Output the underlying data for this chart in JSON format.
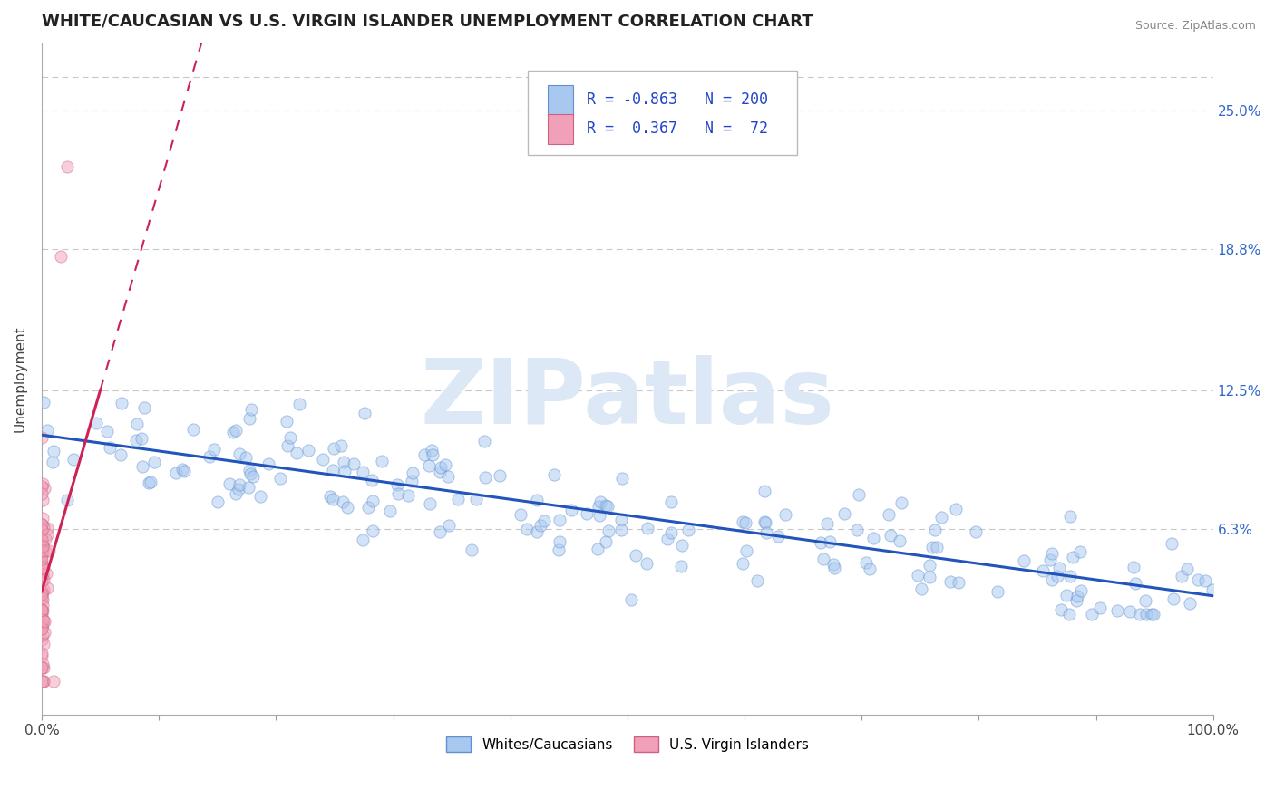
{
  "title": "WHITE/CAUCASIAN VS U.S. VIRGIN ISLANDER UNEMPLOYMENT CORRELATION CHART",
  "source": "Source: ZipAtlas.com",
  "ylabel": "Unemployment",
  "xlim": [
    0,
    1.0
  ],
  "ylim": [
    -0.02,
    0.28
  ],
  "ytick_positions": [
    0.063,
    0.125,
    0.188,
    0.25
  ],
  "ytick_labels": [
    "6.3%",
    "12.5%",
    "18.8%",
    "25.0%"
  ],
  "grid_color": "#c8c8c8",
  "background_color": "#ffffff",
  "blue_color": "#a8c8f0",
  "pink_color": "#f0a0b8",
  "blue_edge": "#6090d0",
  "pink_edge": "#d06080",
  "blue_line_color": "#2255bb",
  "pink_line_color": "#cc2255",
  "watermark": "ZIPatlas",
  "watermark_color": "#dce8f5",
  "legend_R1": "-0.863",
  "legend_N1": "200",
  "legend_R2": "0.367",
  "legend_N2": "72",
  "legend_label1": "Whites/Caucasians",
  "legend_label2": "U.S. Virgin Islanders",
  "blue_intercept": 0.105,
  "blue_slope": -0.072,
  "pink_intercept": 0.035,
  "pink_slope": 1.8,
  "title_fontsize": 13,
  "marker_size": 90,
  "alpha_blue": 0.5,
  "alpha_pink": 0.5
}
